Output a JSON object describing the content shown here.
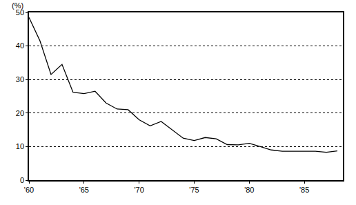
{
  "chart_data": {
    "type": "line",
    "ylabel": "(%)",
    "x": [
      1960,
      1961,
      1962,
      1963,
      1964,
      1965,
      1966,
      1967,
      1968,
      1969,
      1970,
      1971,
      1972,
      1973,
      1974,
      1975,
      1976,
      1977,
      1978,
      1979,
      1980,
      1981,
      1982,
      1983,
      1984,
      1985,
      1986,
      1987,
      1988
    ],
    "values": [
      48.5,
      41.5,
      31.5,
      34.5,
      26.2,
      25.8,
      26.5,
      23,
      21.2,
      21,
      18,
      16.2,
      17.5,
      15,
      12.5,
      11.8,
      12.7,
      12.3,
      10.6,
      10.5,
      11,
      10,
      9,
      8.6,
      8.6,
      8.7,
      8.6,
      8.3,
      8.7
    ],
    "color": "#000000",
    "xlim": [
      1960,
      1988.5
    ],
    "xticks": [
      {
        "value": 1960,
        "label": "'60"
      },
      {
        "value": 1965,
        "label": "'65"
      },
      {
        "value": 1970,
        "label": "'70"
      },
      {
        "value": 1975,
        "label": "'75"
      },
      {
        "value": 1980,
        "label": "'80"
      },
      {
        "value": 1985,
        "label": "'85"
      }
    ],
    "ylim": [
      0,
      50
    ],
    "yticks": [
      0,
      10,
      20,
      30,
      40,
      50
    ],
    "grid": true
  }
}
